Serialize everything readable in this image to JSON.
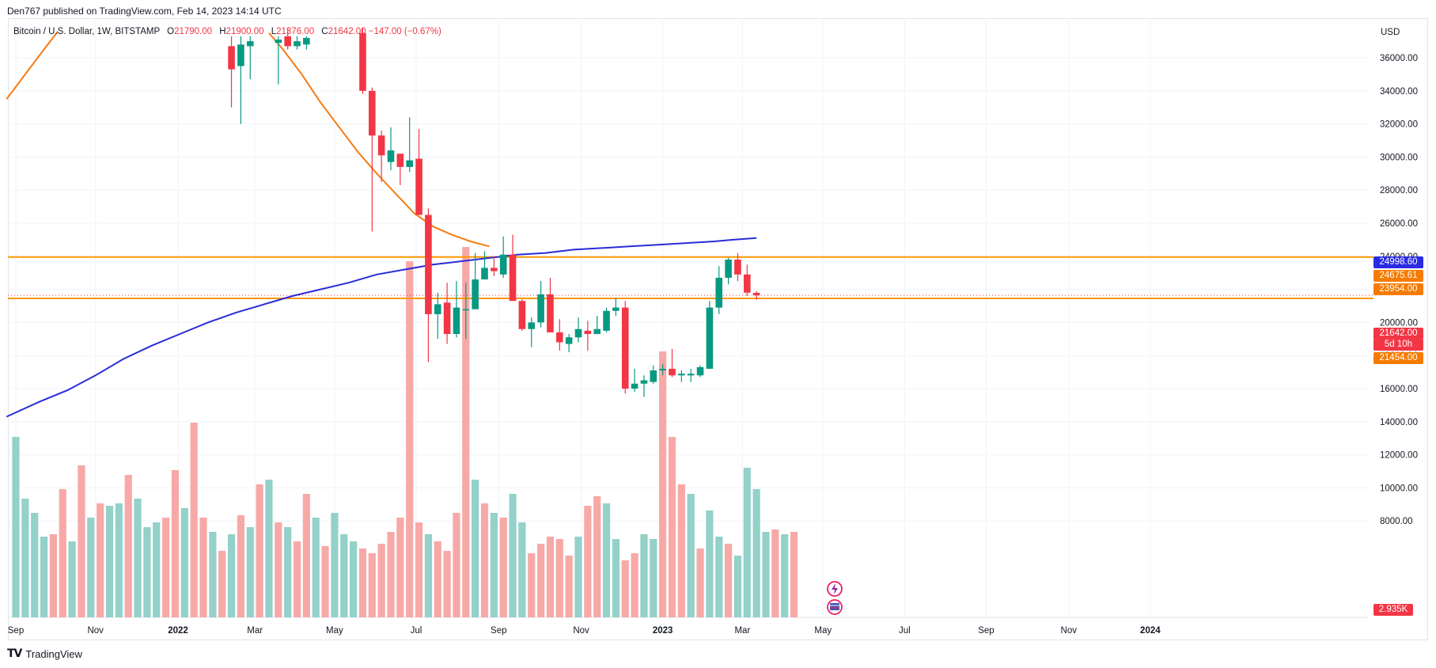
{
  "header": {
    "publisher": "Den767 published on TradingView.com, Feb 14, 2023 14:14 UTC"
  },
  "legend": {
    "symbol": "Bitcoin / U.S. Dollar, 1W, BITSTAMP",
    "open_label": "O",
    "open": "21790.00",
    "high_label": "H",
    "high": "21900.00",
    "low_label": "L",
    "low": "21376.00",
    "close_label": "C",
    "close": "21642.00",
    "change": "−147.00 (−0.67%)"
  },
  "currency": "USD",
  "badges": {
    "ma_blue": "24998.60",
    "ma_orange": "24675.61",
    "level_upper": "23954.00",
    "last_price": "21642.00",
    "countdown": "5d 10h",
    "level_lower": "21454.00",
    "volume": "2.935K"
  },
  "colors": {
    "up": "#089981",
    "down": "#f23645",
    "vol_up": "#93d1c9",
    "vol_down": "#f7a9a7",
    "ma_slow": "#2a2bd9",
    "ma_fast": "#f57c13",
    "level": "#ff9800",
    "badge_blue": "#2a2be3",
    "badge_orange": "#f57c00"
  },
  "footer": {
    "brand": "TradingView"
  },
  "chart_data": {
    "type": "candlestick",
    "title": "Bitcoin / U.S. Dollar, 1W, BITSTAMP",
    "ylim": [
      7000,
      37000
    ],
    "y_ticks": [
      8000,
      10000,
      12000,
      14000,
      16000,
      18000,
      20000,
      22000,
      24000,
      26000,
      28000,
      30000,
      32000,
      34000,
      36000
    ],
    "y_tick_labels": [
      "8000.00",
      "10000.00",
      "12000.00",
      "14000.00",
      "16000.00",
      "18000.00",
      "20000.00",
      "22000.00",
      "24000.00",
      "26000.00",
      "28000.00",
      "30000.00",
      "32000.00",
      "34000.00",
      "36000.00"
    ],
    "x_ticks": [
      {
        "label": "Sep",
        "week": 0.5
      },
      {
        "label": "Nov",
        "week": 9
      },
      {
        "label": "2022",
        "week": 17.8
      },
      {
        "label": "Mar",
        "week": 26
      },
      {
        "label": "May",
        "week": 34.5
      },
      {
        "label": "Jul",
        "week": 43.2
      },
      {
        "label": "Sep",
        "week": 52
      },
      {
        "label": "Nov",
        "week": 60.8
      },
      {
        "label": "2023",
        "week": 69.5
      },
      {
        "label": "Mar",
        "week": 78
      },
      {
        "label": "May",
        "week": 86.6
      },
      {
        "label": "Jul",
        "week": 95.3
      },
      {
        "label": "Sep",
        "week": 104
      },
      {
        "label": "Nov",
        "week": 112.8
      },
      {
        "label": "2024",
        "week": 121.5
      }
    ],
    "candles": [
      {
        "w": 23.5,
        "o": 36700,
        "h": 37300,
        "l": 33000,
        "c": 35300
      },
      {
        "w": 24.5,
        "o": 35500,
        "h": 37300,
        "l": 32000,
        "c": 36800
      },
      {
        "w": 25.5,
        "o": 36700,
        "h": 37300,
        "l": 34700,
        "c": 37000
      },
      {
        "w": 28.5,
        "o": 36900,
        "h": 37300,
        "l": 34400,
        "c": 37100
      },
      {
        "w": 29.5,
        "o": 37300,
        "h": 37800,
        "l": 36500,
        "c": 36700
      },
      {
        "w": 30.5,
        "o": 36700,
        "h": 37300,
        "l": 36500,
        "c": 37000
      },
      {
        "w": 31.5,
        "o": 36800,
        "h": 37300,
        "l": 36500,
        "c": 37200
      },
      {
        "w": 37.5,
        "o": 37500,
        "h": 37800,
        "l": 33800,
        "c": 34000
      },
      {
        "w": 38.5,
        "o": 34000,
        "h": 34200,
        "l": 25500,
        "c": 31300
      },
      {
        "w": 39.5,
        "o": 31300,
        "h": 31600,
        "l": 28500,
        "c": 30100
      },
      {
        "w": 40.5,
        "o": 29700,
        "h": 31800,
        "l": 29200,
        "c": 30400
      },
      {
        "w": 41.5,
        "o": 30200,
        "h": 30200,
        "l": 28300,
        "c": 29400
      },
      {
        "w": 42.5,
        "o": 29400,
        "h": 32400,
        "l": 29100,
        "c": 29800
      },
      {
        "w": 43.5,
        "o": 29900,
        "h": 31700,
        "l": 26500,
        "c": 26500
      },
      {
        "w": 44.5,
        "o": 26500,
        "h": 26900,
        "l": 17600,
        "c": 20500
      },
      {
        "w": 45.5,
        "o": 20500,
        "h": 21800,
        "l": 19000,
        "c": 21100
      },
      {
        "w": 46.5,
        "o": 21200,
        "h": 22400,
        "l": 18700,
        "c": 19300
      },
      {
        "w": 47.5,
        "o": 19300,
        "h": 22500,
        "l": 19100,
        "c": 20900
      },
      {
        "w": 48.5,
        "o": 20800,
        "h": 22400,
        "l": 19000,
        "c": 20800
      },
      {
        "w": 49.5,
        "o": 20800,
        "h": 24200,
        "l": 20800,
        "c": 22600
      },
      {
        "w": 50.5,
        "o": 22600,
        "h": 24300,
        "l": 22600,
        "c": 23300
      },
      {
        "w": 51.5,
        "o": 23300,
        "h": 24000,
        "l": 22800,
        "c": 23100
      },
      {
        "w": 52.5,
        "o": 22900,
        "h": 25200,
        "l": 22700,
        "c": 24100
      },
      {
        "w": 53.5,
        "o": 24100,
        "h": 25300,
        "l": 21300,
        "c": 21300
      },
      {
        "w": 54.5,
        "o": 21300,
        "h": 21400,
        "l": 19500,
        "c": 19600
      },
      {
        "w": 55.5,
        "o": 19600,
        "h": 20300,
        "l": 18500,
        "c": 20000
      },
      {
        "w": 56.5,
        "o": 20000,
        "h": 22500,
        "l": 19700,
        "c": 21700
      },
      {
        "w": 57.5,
        "o": 21700,
        "h": 22700,
        "l": 19500,
        "c": 19400
      },
      {
        "w": 58.5,
        "o": 19400,
        "h": 20200,
        "l": 18300,
        "c": 18800
      },
      {
        "w": 59.5,
        "o": 18700,
        "h": 19300,
        "l": 18200,
        "c": 19100
      },
      {
        "w": 60.5,
        "o": 19100,
        "h": 20300,
        "l": 18800,
        "c": 19600
      },
      {
        "w": 61.5,
        "o": 19500,
        "h": 20100,
        "l": 18300,
        "c": 19300
      },
      {
        "w": 62.5,
        "o": 19300,
        "h": 20400,
        "l": 19300,
        "c": 19600
      },
      {
        "w": 63.5,
        "o": 19500,
        "h": 20900,
        "l": 19400,
        "c": 20700
      },
      {
        "w": 64.5,
        "o": 20700,
        "h": 21500,
        "l": 20400,
        "c": 20900
      },
      {
        "w": 65.5,
        "o": 20900,
        "h": 21300,
        "l": 15700,
        "c": 16000
      },
      {
        "w": 66.5,
        "o": 16000,
        "h": 17200,
        "l": 15800,
        "c": 16300
      },
      {
        "w": 67.5,
        "o": 16300,
        "h": 16800,
        "l": 15500,
        "c": 16500
      },
      {
        "w": 68.5,
        "o": 16400,
        "h": 17400,
        "l": 16300,
        "c": 17100
      },
      {
        "w": 69.5,
        "o": 17100,
        "h": 17500,
        "l": 16800,
        "c": 17200
      },
      {
        "w": 70.5,
        "o": 17200,
        "h": 18400,
        "l": 16700,
        "c": 16800
      },
      {
        "w": 71.5,
        "o": 16800,
        "h": 17100,
        "l": 16400,
        "c": 16900
      },
      {
        "w": 72.5,
        "o": 16800,
        "h": 17200,
        "l": 16400,
        "c": 16900
      },
      {
        "w": 73.5,
        "o": 16800,
        "h": 17400,
        "l": 16700,
        "c": 17300
      },
      {
        "w": 74.5,
        "o": 17200,
        "h": 21300,
        "l": 17200,
        "c": 20900
      },
      {
        "w": 75.5,
        "o": 20900,
        "h": 23400,
        "l": 20500,
        "c": 22700
      },
      {
        "w": 76.5,
        "o": 22700,
        "h": 23900,
        "l": 22300,
        "c": 23800
      },
      {
        "w": 77.5,
        "o": 23800,
        "h": 24200,
        "l": 22500,
        "c": 22900
      },
      {
        "w": 78.5,
        "o": 22900,
        "h": 23500,
        "l": 21600,
        "c": 21800
      },
      {
        "w": 79.5,
        "o": 21790,
        "h": 21900,
        "l": 21376,
        "c": 21642
      }
    ],
    "volume_scale_k": [
      0,
      9
    ],
    "volume": [
      {
        "w": 0.5,
        "v": 3.8,
        "up": true
      },
      {
        "w": 1.5,
        "v": 2.5,
        "up": true
      },
      {
        "w": 2.5,
        "v": 2.2,
        "up": true
      },
      {
        "w": 3.5,
        "v": 1.7,
        "up": true
      },
      {
        "w": 4.5,
        "v": 1.75,
        "up": false
      },
      {
        "w": 5.5,
        "v": 2.7,
        "up": false
      },
      {
        "w": 6.5,
        "v": 1.6,
        "up": true
      },
      {
        "w": 7.5,
        "v": 3.2,
        "up": false
      },
      {
        "w": 8.5,
        "v": 2.1,
        "up": true
      },
      {
        "w": 9.5,
        "v": 2.4,
        "up": false
      },
      {
        "w": 10.5,
        "v": 2.35,
        "up": true
      },
      {
        "w": 11.5,
        "v": 2.4,
        "up": true
      },
      {
        "w": 12.5,
        "v": 3.0,
        "up": false
      },
      {
        "w": 13.5,
        "v": 2.5,
        "up": true
      },
      {
        "w": 14.5,
        "v": 1.9,
        "up": true
      },
      {
        "w": 15.5,
        "v": 2.0,
        "up": true
      },
      {
        "w": 16.5,
        "v": 2.1,
        "up": false
      },
      {
        "w": 17.5,
        "v": 3.1,
        "up": false
      },
      {
        "w": 18.5,
        "v": 2.3,
        "up": true
      },
      {
        "w": 19.5,
        "v": 4.1,
        "up": false
      },
      {
        "w": 20.5,
        "v": 2.1,
        "up": false
      },
      {
        "w": 21.5,
        "v": 1.8,
        "up": true
      },
      {
        "w": 22.5,
        "v": 1.4,
        "up": false
      },
      {
        "w": 23.5,
        "v": 1.75,
        "up": true
      },
      {
        "w": 24.5,
        "v": 2.15,
        "up": false
      },
      {
        "w": 25.5,
        "v": 1.9,
        "up": true
      },
      {
        "w": 26.5,
        "v": 2.8,
        "up": false
      },
      {
        "w": 27.5,
        "v": 2.9,
        "up": true
      },
      {
        "w": 28.5,
        "v": 2.0,
        "up": false
      },
      {
        "w": 29.5,
        "v": 1.9,
        "up": true
      },
      {
        "w": 30.5,
        "v": 1.6,
        "up": false
      },
      {
        "w": 31.5,
        "v": 2.6,
        "up": false
      },
      {
        "w": 32.5,
        "v": 2.1,
        "up": true
      },
      {
        "w": 33.5,
        "v": 1.5,
        "up": false
      },
      {
        "w": 34.5,
        "v": 2.2,
        "up": true
      },
      {
        "w": 35.5,
        "v": 1.75,
        "up": true
      },
      {
        "w": 36.5,
        "v": 1.6,
        "up": true
      },
      {
        "w": 37.5,
        "v": 1.45,
        "up": false
      },
      {
        "w": 38.5,
        "v": 1.35,
        "up": false
      },
      {
        "w": 39.5,
        "v": 1.55,
        "up": false
      },
      {
        "w": 40.5,
        "v": 1.8,
        "up": false
      },
      {
        "w": 41.5,
        "v": 2.1,
        "up": false
      },
      {
        "w": 42.5,
        "v": 7.5,
        "up": false
      },
      {
        "w": 43.5,
        "v": 2.0,
        "up": false
      },
      {
        "w": 44.5,
        "v": 1.75,
        "up": true
      },
      {
        "w": 45.5,
        "v": 1.6,
        "up": false
      },
      {
        "w": 46.5,
        "v": 1.4,
        "up": false
      },
      {
        "w": 47.5,
        "v": 2.2,
        "up": false
      },
      {
        "w": 48.5,
        "v": 7.8,
        "up": false
      },
      {
        "w": 49.5,
        "v": 2.9,
        "up": true
      },
      {
        "w": 50.5,
        "v": 2.4,
        "up": false
      },
      {
        "w": 51.5,
        "v": 2.2,
        "up": true
      },
      {
        "w": 52.5,
        "v": 2.1,
        "up": false
      },
      {
        "w": 53.5,
        "v": 2.6,
        "up": true
      },
      {
        "w": 54.5,
        "v": 2.0,
        "up": true
      },
      {
        "w": 55.5,
        "v": 1.35,
        "up": false
      },
      {
        "w": 56.5,
        "v": 1.55,
        "up": false
      },
      {
        "w": 57.5,
        "v": 1.7,
        "up": false
      },
      {
        "w": 58.5,
        "v": 1.65,
        "up": false
      },
      {
        "w": 59.5,
        "v": 1.3,
        "up": false
      },
      {
        "w": 60.5,
        "v": 1.7,
        "up": true
      },
      {
        "w": 61.5,
        "v": 2.35,
        "up": false
      },
      {
        "w": 62.5,
        "v": 2.55,
        "up": false
      },
      {
        "w": 63.5,
        "v": 2.4,
        "up": true
      },
      {
        "w": 64.5,
        "v": 1.65,
        "up": true
      },
      {
        "w": 65.5,
        "v": 1.2,
        "up": false
      },
      {
        "w": 66.5,
        "v": 1.35,
        "up": false
      },
      {
        "w": 67.5,
        "v": 1.75,
        "up": true
      },
      {
        "w": 68.5,
        "v": 1.65,
        "up": true
      },
      {
        "w": 69.5,
        "v": 5.6,
        "up": false
      },
      {
        "w": 70.5,
        "v": 3.8,
        "up": false
      },
      {
        "w": 71.5,
        "v": 2.8,
        "up": false
      },
      {
        "w": 72.5,
        "v": 2.6,
        "up": true
      },
      {
        "w": 73.5,
        "v": 1.45,
        "up": false
      },
      {
        "w": 74.5,
        "v": 2.25,
        "up": true
      },
      {
        "w": 75.5,
        "v": 1.7,
        "up": true
      },
      {
        "w": 76.5,
        "v": 1.55,
        "up": false
      },
      {
        "w": 77.5,
        "v": 1.3,
        "up": true
      },
      {
        "w": 78.5,
        "v": 3.15,
        "up": true
      },
      {
        "w": 79.5,
        "v": 2.7,
        "up": true
      },
      {
        "w": 80.5,
        "v": 1.8,
        "up": true
      },
      {
        "w": 81.5,
        "v": 1.85,
        "up": false
      },
      {
        "w": 82.5,
        "v": 1.75,
        "up": true
      },
      {
        "w": 83.5,
        "v": 1.8,
        "up": false
      }
    ],
    "ma_slow": [
      [
        -0.5,
        14300
      ],
      [
        3,
        15200
      ],
      [
        6,
        15900
      ],
      [
        9,
        16800
      ],
      [
        12,
        17800
      ],
      [
        15,
        18600
      ],
      [
        18,
        19300
      ],
      [
        21,
        20000
      ],
      [
        24,
        20600
      ],
      [
        27,
        21100
      ],
      [
        30,
        21600
      ],
      [
        33,
        22000
      ],
      [
        36,
        22400
      ],
      [
        39,
        22900
      ],
      [
        42,
        23200
      ],
      [
        45,
        23500
      ],
      [
        48,
        23700
      ],
      [
        51,
        23900
      ],
      [
        54,
        24100
      ],
      [
        57,
        24200
      ],
      [
        60,
        24400
      ],
      [
        63,
        24500
      ],
      [
        66,
        24600
      ],
      [
        69,
        24700
      ],
      [
        72,
        24800
      ],
      [
        75,
        24900
      ],
      [
        77,
        25000
      ],
      [
        79.5,
        25100
      ]
    ],
    "ma_fast": [
      [
        -0.5,
        33500
      ],
      [
        1.5,
        35000
      ],
      [
        3.5,
        36500
      ],
      [
        5,
        37600
      ]
    ],
    "ma_fast_2": [
      [
        27.5,
        37500
      ],
      [
        29,
        36500
      ],
      [
        31,
        35000
      ],
      [
        33,
        33300
      ],
      [
        35,
        31800
      ],
      [
        37,
        30300
      ],
      [
        39,
        29000
      ],
      [
        41,
        27800
      ],
      [
        43,
        26600
      ],
      [
        45,
        25800
      ],
      [
        47,
        25300
      ],
      [
        49,
        24900
      ],
      [
        51,
        24600
      ]
    ],
    "horizontal_levels": [
      23954,
      21454
    ],
    "last_price": 21642
  }
}
